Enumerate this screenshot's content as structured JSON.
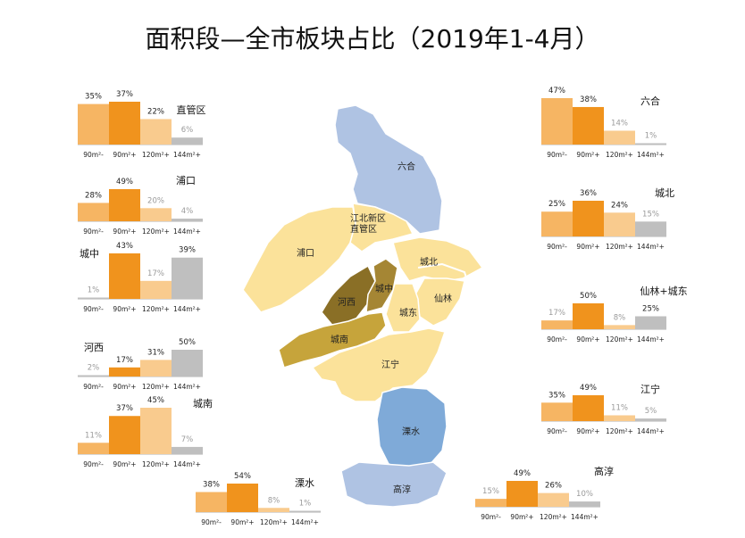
{
  "title": "面积段—全市板块占比（2019年1-4月）",
  "colors": {
    "orange": "#F0931D",
    "light_orange": "#F6B563",
    "pale_orange": "#F9CB8E",
    "gray": "#BFBFBF",
    "map_blue": "#AFC3E3",
    "map_blue_dark": "#7FAAD8",
    "map_yellow": "#FBE29A",
    "map_brown": "#8A6F26",
    "map_olive": "#C6A43B"
  },
  "map_labels": {
    "liuhe": "六合",
    "pukou": "浦口",
    "jiangbei": "江北新区",
    "zhiguan": "直管区",
    "chengbei": "城北",
    "chengzhong": "城中",
    "hexi": "河西",
    "chengdong": "城东",
    "xianlin": "仙林",
    "chengnan": "城南",
    "jiangning": "江宁",
    "lishui": "溧水",
    "gaochun": "高淳"
  },
  "chart_data": [
    {
      "type": "bar",
      "name": "直管区",
      "categories": [
        "90m²-",
        "90m²+",
        "120m²+",
        "144m²+"
      ],
      "values": [
        35,
        37,
        22,
        6
      ],
      "value_labels": [
        "35%",
        "37%",
        "22%",
        "6%"
      ],
      "ylim": [
        0,
        45
      ]
    },
    {
      "type": "bar",
      "name": "浦口",
      "categories": [
        "90m²-",
        "90m²+",
        "120m²+",
        "144m²+"
      ],
      "values": [
        28,
        49,
        20,
        4
      ],
      "value_labels": [
        "28%",
        "49%",
        "20%",
        "4%"
      ],
      "ylim": [
        0,
        55
      ]
    },
    {
      "type": "bar",
      "name": "城中",
      "categories": [
        "90m²-",
        "90m²+",
        "120m²+",
        "144m²+"
      ],
      "values": [
        1,
        43,
        17,
        39
      ],
      "value_labels": [
        "1%",
        "43%",
        "17%",
        "39%"
      ],
      "ylim": [
        0,
        45
      ]
    },
    {
      "type": "bar",
      "name": "河西",
      "categories": [
        "90m²-",
        "90m²+",
        "120m²+",
        "144m²+"
      ],
      "values": [
        2,
        17,
        31,
        50
      ],
      "value_labels": [
        "2%",
        "17%",
        "31%",
        "50%"
      ],
      "ylim": [
        0,
        55
      ]
    },
    {
      "type": "bar",
      "name": "城南",
      "categories": [
        "90m²-",
        "90m²+",
        "120m²+",
        "144m²+"
      ],
      "values": [
        11,
        37,
        45,
        7
      ],
      "value_labels": [
        "11%",
        "37%",
        "45%",
        "7%"
      ],
      "ylim": [
        0,
        48
      ]
    },
    {
      "type": "bar",
      "name": "溧水",
      "categories": [
        "90m²-",
        "90m²+",
        "120m²+",
        "144m²+"
      ],
      "values": [
        38,
        54,
        8,
        1
      ],
      "value_labels": [
        "38%",
        "54%",
        "8%",
        "1%"
      ],
      "ylim": [
        0,
        58
      ]
    },
    {
      "type": "bar",
      "name": "六合",
      "categories": [
        "90m²-",
        "90m²+",
        "120m²+",
        "144m²+"
      ],
      "values": [
        47,
        38,
        14,
        1
      ],
      "value_labels": [
        "47%",
        "38%",
        "14%",
        "1%"
      ],
      "ylim": [
        0,
        48
      ]
    },
    {
      "type": "bar",
      "name": "城北",
      "categories": [
        "90m²-",
        "90m²+",
        "120m²+",
        "144m²+"
      ],
      "values": [
        25,
        36,
        24,
        15
      ],
      "value_labels": [
        "25%",
        "36%",
        "24%",
        "15%"
      ],
      "ylim": [
        0,
        38
      ]
    },
    {
      "type": "bar",
      "name": "仙林+城东",
      "categories": [
        "90m²-",
        "90m²+",
        "120m²+",
        "144m²+"
      ],
      "values": [
        17,
        50,
        8,
        25
      ],
      "value_labels": [
        "17%",
        "50%",
        "8%",
        "25%"
      ],
      "ylim": [
        0,
        55
      ]
    },
    {
      "type": "bar",
      "name": "江宁",
      "categories": [
        "90m²-",
        "90m²+",
        "120m²+",
        "144m²+"
      ],
      "values": [
        35,
        49,
        11,
        5
      ],
      "value_labels": [
        "35%",
        "49%",
        "11%",
        "5%"
      ],
      "ylim": [
        0,
        55
      ]
    },
    {
      "type": "bar",
      "name": "高淳",
      "categories": [
        "90m²-",
        "90m²+",
        "120m²+",
        "144m²+"
      ],
      "values": [
        15,
        49,
        26,
        10
      ],
      "value_labels": [
        "15%",
        "49%",
        "26%",
        "10%"
      ],
      "ylim": [
        0,
        55
      ]
    }
  ]
}
